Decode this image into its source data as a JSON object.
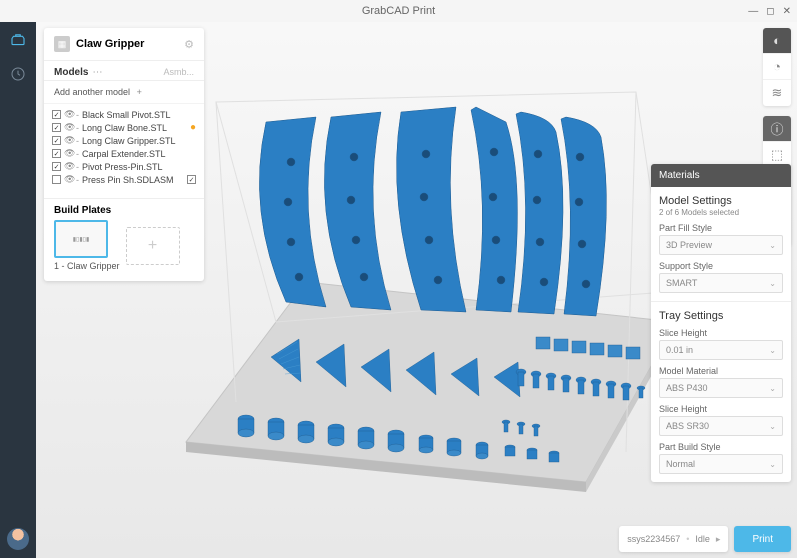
{
  "app": {
    "title": "GrabCAD Print"
  },
  "project": {
    "title": "Claw Gripper",
    "tabs": {
      "models": "Models",
      "assemblies": "Asmb..."
    },
    "add_label": "Add another model",
    "files": [
      {
        "name": "Black Small Pivot.STL",
        "checked": true,
        "visible": true,
        "warn": false
      },
      {
        "name": "Long Claw Bone.STL",
        "checked": true,
        "visible": true,
        "warn": true
      },
      {
        "name": "Long Claw Gripper.STL",
        "checked": true,
        "visible": true,
        "warn": false
      },
      {
        "name": "Carpal Extender.STL",
        "checked": true,
        "visible": true,
        "warn": false
      },
      {
        "name": "Pivot Press-Pin.STL",
        "checked": true,
        "visible": true,
        "warn": false
      },
      {
        "name": "Press Pin Sh.SDLASM",
        "checked": false,
        "visible": true,
        "warn": false,
        "extra_check": true
      }
    ],
    "build_plates": {
      "title": "Build Plates",
      "items": [
        {
          "label": "1 - Claw Gripper"
        }
      ]
    }
  },
  "materials": {
    "header": "Materials",
    "model_settings": {
      "title": "Model Settings",
      "subtitle": "2 of 6 Models selected"
    },
    "fields": [
      {
        "label": "Part Fill Style",
        "value": "3D Preview"
      },
      {
        "label": "Support Style",
        "value": "SMART"
      }
    ],
    "tray_settings": {
      "title": "Tray Settings"
    },
    "tray_fields": [
      {
        "label": "Slice Height",
        "value": "0.01 in"
      },
      {
        "label": "Model Material",
        "value": "ABS P430"
      },
      {
        "label": "Slice Height",
        "value": "ABS SR30"
      },
      {
        "label": "Part Build Style",
        "value": "Normal"
      }
    ]
  },
  "status": {
    "printer": "ssys2234567",
    "state": "Idle"
  },
  "actions": {
    "print": "Print"
  },
  "colors": {
    "accent": "#4db8e8",
    "part": "#2b7fc4"
  }
}
